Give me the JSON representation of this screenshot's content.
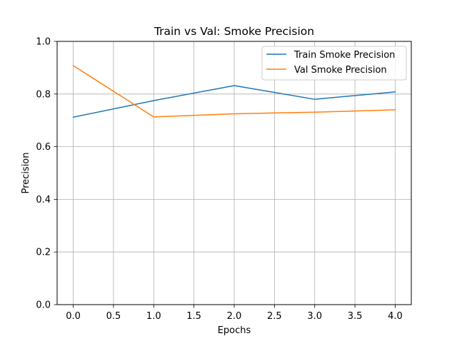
{
  "chart_data": {
    "type": "line",
    "title": "Train vs Val: Smoke Precision",
    "xlabel": "Epochs",
    "ylabel": "Precision",
    "xlim": [
      -0.2,
      4.2
    ],
    "ylim": [
      0.0,
      1.0
    ],
    "grid": true,
    "legend_position": "top-right",
    "xticks": [
      0.0,
      0.5,
      1.0,
      1.5,
      2.0,
      2.5,
      3.0,
      3.5,
      4.0
    ],
    "xtick_labels": [
      "0.0",
      "0.5",
      "1.0",
      "1.5",
      "2.0",
      "2.5",
      "3.0",
      "3.5",
      "4.0"
    ],
    "yticks": [
      0.0,
      0.2,
      0.4,
      0.6,
      0.8,
      1.0
    ],
    "ytick_labels": [
      "0.0",
      "0.2",
      "0.4",
      "0.6",
      "0.8",
      "1.0"
    ],
    "x": [
      0,
      1,
      2,
      3,
      4
    ],
    "series": [
      {
        "name": "Train Smoke Precision",
        "color": "#1f77b4",
        "values": [
          0.712,
          0.775,
          0.832,
          0.78,
          0.808
        ]
      },
      {
        "name": "Val Smoke Precision",
        "color": "#ff7f0e",
        "values": [
          0.908,
          0.713,
          0.725,
          0.731,
          0.74
        ]
      }
    ]
  }
}
